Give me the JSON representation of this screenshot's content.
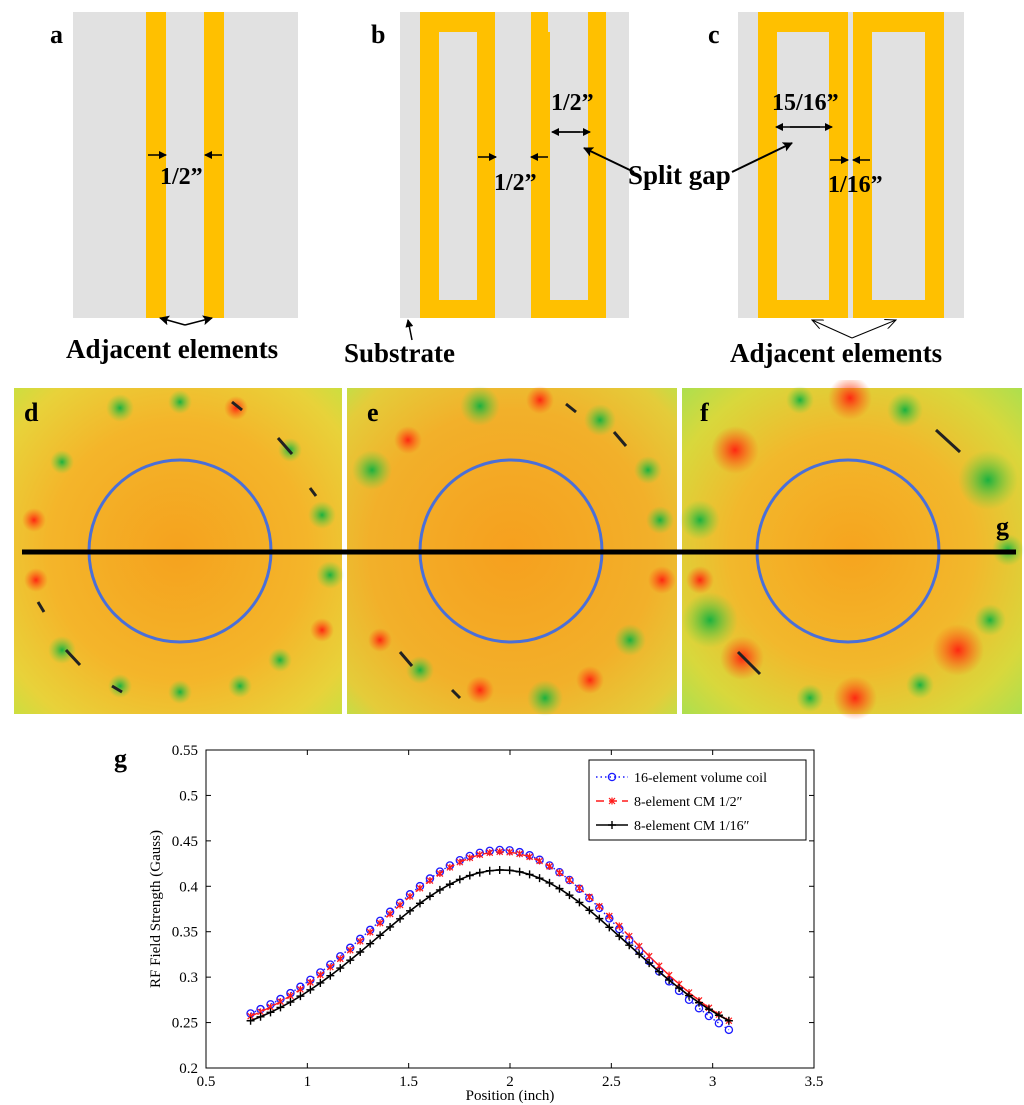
{
  "panels": {
    "a": {
      "letter": "a",
      "dim_label": "1/2”",
      "caption": "Adjacent elements"
    },
    "b": {
      "letter": "b",
      "dim_label_gap": "1/2”",
      "dim_label_between": "1/2”",
      "split_gap_label": "Split gap",
      "caption": "Substrate"
    },
    "c": {
      "letter": "c",
      "dim_label_gap": "15/16”",
      "dim_label_between": "1/16”",
      "caption": "Adjacent elements"
    },
    "d": {
      "letter": "d"
    },
    "e": {
      "letter": "e"
    },
    "f": {
      "letter": "f",
      "line_label": "g"
    }
  },
  "colors": {
    "substrate": "#e1e1e1",
    "conductor": "#ffc000",
    "roi_circle": "#4a6fd8",
    "field_base": "#f0b020"
  },
  "chart_data": {
    "type": "line",
    "panel_letter": "g",
    "xlabel": "Position (inch)",
    "ylabel": "RF Field Strength (Gauss)",
    "xlim": [
      0.5,
      3.5
    ],
    "ylim": [
      0.2,
      0.55
    ],
    "xticks": [
      "0.5",
      "1",
      "1.5",
      "2",
      "2.5",
      "3",
      "3.5"
    ],
    "yticks": [
      "0.2",
      "0.25",
      "0.3",
      "0.35",
      "0.4",
      "0.45",
      "0.5",
      "0.55"
    ],
    "legend_position": "top-right",
    "x_range": [
      0.72,
      3.08
    ],
    "series": [
      {
        "name": "16-element volume coil",
        "style": "dotted-circle",
        "color": "#1a1aff",
        "peak": 0.44,
        "edge_left": 0.26,
        "edge_right": 0.242
      },
      {
        "name": "8-element CM 1/2″",
        "style": "dashed-star",
        "color": "#ff1a1a",
        "peak": 0.438,
        "edge_left": 0.257,
        "edge_right": 0.252
      },
      {
        "name": "8-element CM 1/16″",
        "style": "solid-plus",
        "color": "#000000",
        "peak": 0.418,
        "edge_left": 0.252,
        "edge_right": 0.252
      }
    ]
  }
}
